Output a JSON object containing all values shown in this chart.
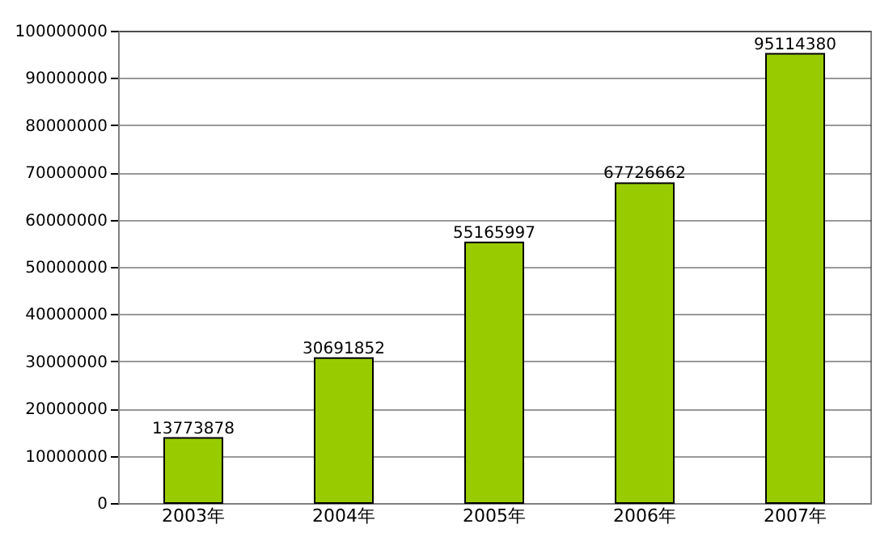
{
  "chart_data": {
    "type": "bar",
    "categories": [
      "2003年",
      "2004年",
      "2005年",
      "2006年",
      "2007年"
    ],
    "values": [
      13773878,
      30691852,
      55165997,
      67726662,
      95114380
    ],
    "color": "#99cc00",
    "ylim": [
      0,
      100000000
    ],
    "yticks": [
      0,
      10000000,
      20000000,
      30000000,
      40000000,
      50000000,
      60000000,
      70000000,
      80000000,
      90000000,
      100000000
    ],
    "grid": "y",
    "data_labels": true,
    "legend": false
  }
}
